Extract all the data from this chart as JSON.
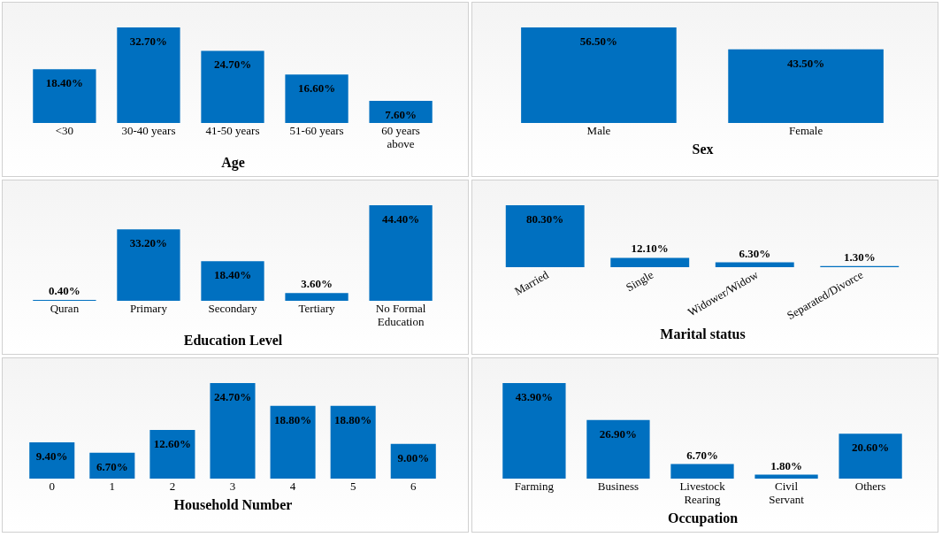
{
  "chart_data": [
    {
      "type": "bar",
      "xlabel": "Age",
      "categories": [
        "<30",
        "30-40 years",
        "41-50 years",
        "51-60 years",
        "60 years above"
      ],
      "values": [
        18.4,
        32.7,
        24.7,
        16.6,
        7.6
      ],
      "value_labels": [
        "18.40%",
        "32.70%",
        "24.70%",
        "16.60%",
        "7.60%"
      ],
      "color": "#0070c0"
    },
    {
      "type": "bar",
      "xlabel": "Sex",
      "categories": [
        "Male",
        "Female"
      ],
      "values": [
        56.5,
        43.5
      ],
      "value_labels": [
        "56.50%",
        "43.50%"
      ],
      "color": "#0070c0"
    },
    {
      "type": "bar",
      "xlabel": "Education Level",
      "categories": [
        "Quran",
        "Primary",
        "Secondary",
        "Tertiary",
        "No Formal Education"
      ],
      "values": [
        0.4,
        33.2,
        18.4,
        3.6,
        44.4
      ],
      "value_labels": [
        "0.40%",
        "33.20%",
        "18.40%",
        "3.60%",
        "44.40%"
      ],
      "color": "#0070c0"
    },
    {
      "type": "bar",
      "xlabel": "Marital status",
      "categories": [
        "Married",
        "Single",
        "Widower/Widow",
        "Separated/Divorce"
      ],
      "values": [
        80.3,
        12.1,
        6.3,
        1.3
      ],
      "value_labels": [
        "80.30%",
        "12.10%",
        "6.30%",
        "1.30%"
      ],
      "color": "#0070c0"
    },
    {
      "type": "bar",
      "xlabel": "Household Number",
      "categories": [
        "0",
        "1",
        "2",
        "3",
        "4",
        "5",
        "6"
      ],
      "values": [
        9.4,
        6.7,
        12.6,
        24.7,
        18.8,
        18.8,
        9.0
      ],
      "value_labels": [
        "9.40%",
        "6.70%",
        "12.60%",
        "24.70%",
        "18.80%",
        "18.80%",
        "9.00%"
      ],
      "color": "#0070c0"
    },
    {
      "type": "bar",
      "xlabel": "Occupation",
      "categories": [
        "Farming",
        "Business",
        "Livestock Rearing",
        "Civil Servant",
        "Others"
      ],
      "values": [
        43.9,
        26.9,
        6.7,
        1.8,
        20.6
      ],
      "value_labels": [
        "43.90%",
        "26.90%",
        "6.70%",
        "1.80%",
        "20.60%"
      ],
      "color": "#0070c0"
    }
  ]
}
